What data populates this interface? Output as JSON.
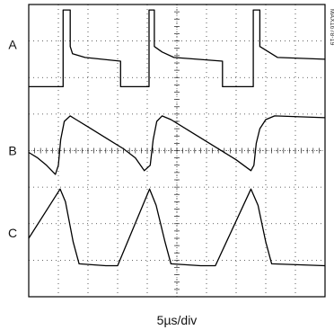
{
  "chart_data": {
    "type": "line",
    "xlabel": "5µs/div",
    "figure_id": "MAX1678-19",
    "grid": true,
    "divisions": {
      "x": 10,
      "y": 8
    },
    "xlim": [
      0,
      50
    ],
    "ylim": [
      0,
      8
    ],
    "channels": [
      {
        "label": "A",
        "x": [
          0,
          5.8,
          5.8,
          7.0,
          7.0,
          7.4,
          9.5,
          15.5,
          15.5,
          20.3,
          20.3,
          21.2,
          21.2,
          22.5,
          24.5,
          32.7,
          32.7,
          37.9,
          37.9,
          39.0,
          39.0,
          40.5,
          42.0,
          50
        ],
        "y": [
          5.75,
          5.75,
          7.85,
          7.85,
          6.85,
          6.65,
          6.55,
          6.45,
          5.75,
          5.75,
          7.85,
          7.85,
          6.85,
          6.7,
          6.55,
          6.45,
          5.75,
          5.75,
          7.85,
          7.85,
          6.85,
          6.7,
          6.55,
          6.5
        ]
      },
      {
        "label": "B",
        "x": [
          0,
          1.5,
          3.0,
          4.5,
          5.0,
          5.4,
          6.0,
          7.0,
          8.0,
          10.0,
          13.0,
          16.0,
          18.0,
          19.5,
          20.5,
          21.0,
          21.6,
          22.5,
          24.0,
          27.0,
          31.0,
          35.0,
          37.5,
          38.0,
          38.4,
          39.0,
          40.0,
          41.5,
          50
        ],
        "y": [
          3.95,
          3.8,
          3.6,
          3.35,
          3.6,
          4.3,
          4.8,
          4.95,
          4.85,
          4.65,
          4.35,
          4.05,
          3.8,
          3.45,
          3.6,
          4.3,
          4.8,
          4.95,
          4.85,
          4.55,
          4.15,
          3.75,
          3.45,
          3.6,
          4.2,
          4.6,
          4.85,
          4.95,
          4.9
        ]
      },
      {
        "label": "C",
        "x": [
          0,
          5.3,
          6.2,
          7.5,
          8.5,
          13.0,
          15.0,
          20.4,
          21.5,
          23.0,
          24.0,
          29.0,
          31.5,
          37.5,
          38.7,
          40.0,
          41.0,
          50
        ],
        "y": [
          1.6,
          2.95,
          2.6,
          1.5,
          0.9,
          0.85,
          0.85,
          2.95,
          2.5,
          1.5,
          0.9,
          0.85,
          0.85,
          2.95,
          2.5,
          1.5,
          0.9,
          0.85
        ]
      }
    ]
  }
}
